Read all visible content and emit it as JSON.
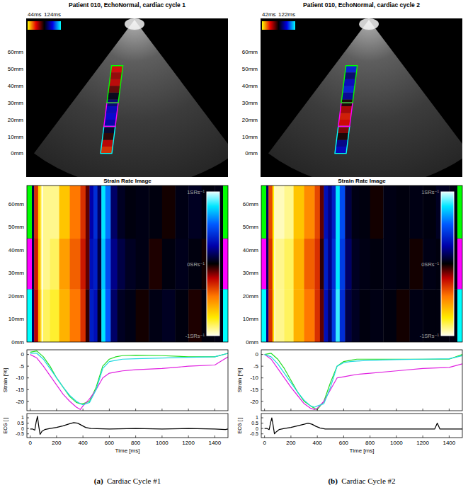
{
  "chart_data": [
    {
      "type": "image",
      "title": "Patient 010, EchoNormal, cardiac cycle 1",
      "label": "(a)",
      "caption": "Cardiac Cycle #1",
      "ylim": [
        -14,
        80
      ],
      "yticks": [
        {
          "value": 0,
          "label": "0mm"
        },
        {
          "value": 10,
          "label": "10mm"
        },
        {
          "value": 20,
          "label": "20mm"
        },
        {
          "value": 30,
          "label": "30mm"
        },
        {
          "value": 40,
          "label": "40mm"
        },
        {
          "value": 50,
          "label": "50mm"
        },
        {
          "value": 60,
          "label": "60mm"
        }
      ],
      "colorbar": {
        "range": [
          44,
          124
        ],
        "ticks": [
          {
            "value": 44,
            "label": "44ms"
          },
          {
            "value": 124,
            "label": "124ms"
          }
        ]
      },
      "segments": [
        {
          "color": "#00ffff",
          "range": [
            0,
            16
          ]
        },
        {
          "color": "#ff00ff",
          "range": [
            16,
            30
          ]
        },
        {
          "color": "#00ff00",
          "range": [
            30,
            52
          ]
        }
      ],
      "cell_range": [
        0,
        52
      ],
      "cells": [
        60,
        66,
        80,
        88,
        100,
        104,
        102,
        95,
        86,
        75,
        66,
        70,
        64
      ]
    },
    {
      "type": "heatmap",
      "title": "Strain Rate Image",
      "xlim": [
        -25,
        1500
      ],
      "ylim": [
        0,
        68
      ],
      "yticks": [
        {
          "value": 0,
          "label": "0mm"
        },
        {
          "value": 10,
          "label": "10mm"
        },
        {
          "value": 20,
          "label": "20mm"
        },
        {
          "value": 30,
          "label": "30mm"
        },
        {
          "value": 40,
          "label": "40mm"
        },
        {
          "value": 50,
          "label": "50mm"
        },
        {
          "value": 60,
          "label": "60mm"
        }
      ],
      "tick_labels": "y",
      "x_edges": [
        -25,
        0,
        30,
        60,
        80,
        150,
        220,
        300,
        380,
        420,
        450,
        480,
        510,
        540,
        570,
        610,
        660,
        720,
        800,
        900,
        1000,
        1100,
        1200,
        1300,
        1400,
        1500
      ],
      "y_edges": [
        0,
        23,
        45,
        68
      ],
      "cells": [
        [
          0.05,
          0.15,
          -0.2,
          -0.6,
          -0.85,
          -0.8,
          -0.6,
          -0.45,
          -0.3,
          -0.05,
          0.35,
          0.3,
          0.05,
          0.8,
          0.55,
          0.15,
          0.05,
          0.03,
          -0.02,
          0.03,
          0.05,
          0.02,
          -0.03,
          0.02,
          0.03
        ],
        [
          0.05,
          0.1,
          -0.25,
          -0.65,
          -0.9,
          -0.85,
          -0.55,
          -0.4,
          -0.25,
          -0.1,
          0.3,
          0.35,
          0.1,
          0.75,
          0.5,
          0.2,
          0.1,
          0.05,
          0.03,
          -0.03,
          0.02,
          0.04,
          0.02,
          -0.02,
          0.02
        ],
        [
          0.05,
          0.1,
          -0.3,
          -0.7,
          -0.9,
          -0.9,
          -0.65,
          -0.45,
          -0.3,
          -0.1,
          0.25,
          0.4,
          0.15,
          0.8,
          0.6,
          0.15,
          0.05,
          0.02,
          0.03,
          0.02,
          -0.02,
          0.03,
          0.05,
          0.02,
          0.03
        ]
      ],
      "colorbar": {
        "range": [
          -1,
          1
        ],
        "ticks": [
          {
            "value": 1,
            "label": "1SRs⁻¹"
          },
          {
            "value": 0,
            "label": "0SRs⁻¹"
          },
          {
            "value": -1,
            "label": "-1SRs⁻¹"
          }
        ]
      },
      "segments": [
        {
          "color": "#00ffff",
          "range": [
            0,
            23
          ]
        },
        {
          "color": "#ff00ff",
          "range": [
            23,
            45
          ]
        },
        {
          "color": "#00ff00",
          "range": [
            45,
            68
          ]
        }
      ],
      "onset": 93
    },
    {
      "type": "line",
      "ylabel": "Strain [%]",
      "xlim": [
        -25,
        1500
      ],
      "ylim": [
        -24,
        2
      ],
      "xticks": [
        0,
        200,
        400,
        600,
        800,
        1000,
        1200,
        1400
      ],
      "yticks": [
        0,
        -5,
        -10,
        -15,
        -20
      ],
      "tick_labels": "y",
      "x": [
        0,
        50,
        100,
        150,
        200,
        250,
        300,
        350,
        380,
        400,
        450,
        500,
        550,
        600,
        650,
        700,
        800,
        1000,
        1200,
        1400,
        1500
      ],
      "series": [
        {
          "color": "#22dd22",
          "values": [
            1,
            1.5,
            -1,
            -5,
            -10,
            -14,
            -18,
            -20.5,
            -21,
            -21,
            -20,
            -14,
            -5,
            -2,
            -1,
            -0.5,
            -0.3,
            -0.5,
            -1,
            -1,
            0.5
          ]
        },
        {
          "color": "#e020e0",
          "values": [
            0,
            -1.5,
            -5,
            -9,
            -13,
            -17,
            -20,
            -22.5,
            -23.5,
            -22,
            -19,
            -15,
            -10,
            -8,
            -7.5,
            -7,
            -6.5,
            -6,
            -5,
            -4.5,
            -1
          ]
        },
        {
          "color": "#20d8e0",
          "values": [
            0.5,
            0.5,
            -2,
            -6,
            -10,
            -14,
            -17.5,
            -20,
            -21,
            -21.5,
            -20.5,
            -15,
            -6,
            -3,
            -2.5,
            -2,
            -1.8,
            -1.5,
            -1.2,
            -1,
            0.5
          ]
        }
      ]
    },
    {
      "type": "line",
      "xlabel": "Time [ms]",
      "ylabel": "ECG [ ]",
      "xlim": [
        -25,
        1500
      ],
      "ylim": [
        -0.85,
        1.4
      ],
      "xticks": [
        0,
        200,
        400,
        600,
        800,
        1000,
        1200,
        1400
      ],
      "yticks": [
        1,
        0.5,
        0,
        -0.5
      ],
      "x": [
        0,
        20,
        35,
        45,
        55,
        65,
        75,
        90,
        110,
        150,
        200,
        250,
        300,
        330,
        360,
        390,
        420,
        460,
        600,
        800,
        1000,
        1200,
        1400,
        1480,
        1500
      ],
      "series": [
        {
          "color": "#000000",
          "values": [
            -0.05,
            -0.05,
            -0.15,
            0.6,
            1.15,
            0.2,
            -0.55,
            -0.25,
            -0.1,
            0,
            0.1,
            0.25,
            0.45,
            0.55,
            0.5,
            0.3,
            0.1,
            0,
            -0.05,
            0,
            -0.05,
            0,
            -0.05,
            -0.1,
            -0.05
          ]
        }
      ]
    },
    {
      "type": "image",
      "title": "Patient 010, EchoNormal, cardiac cycle 2",
      "label": "(b)",
      "caption": "Cardiac Cycle #2",
      "ylim": [
        -14,
        80
      ],
      "yticks": [
        {
          "value": 0,
          "label": "0mm"
        },
        {
          "value": 10,
          "label": "10mm"
        },
        {
          "value": 20,
          "label": "20mm"
        },
        {
          "value": 30,
          "label": "30mm"
        },
        {
          "value": 40,
          "label": "40mm"
        },
        {
          "value": 50,
          "label": "50mm"
        },
        {
          "value": 60,
          "label": "60mm"
        }
      ],
      "colorbar": {
        "range": [
          42,
          122
        ],
        "ticks": [
          {
            "value": 42,
            "label": "42ms"
          },
          {
            "value": 122,
            "label": "122ms"
          }
        ]
      },
      "segments": [
        {
          "color": "#00ffff",
          "range": [
            0,
            16
          ]
        },
        {
          "color": "#ff00ff",
          "range": [
            16,
            30
          ]
        },
        {
          "color": "#00ff00",
          "range": [
            30,
            52
          ]
        }
      ],
      "cell_range": [
        0,
        52
      ],
      "cells": [
        100,
        95,
        80,
        70,
        62,
        60,
        66,
        80,
        96,
        104,
        100,
        92,
        104
      ]
    },
    {
      "type": "heatmap",
      "title": "Strain Rate Image",
      "xlim": [
        -25,
        1500
      ],
      "ylim": [
        0,
        68
      ],
      "yticks": [
        {
          "value": 0,
          "label": "0mm"
        },
        {
          "value": 10,
          "label": "10mm"
        },
        {
          "value": 20,
          "label": "20mm"
        },
        {
          "value": 30,
          "label": "30mm"
        },
        {
          "value": 40,
          "label": "40mm"
        },
        {
          "value": 50,
          "label": "50mm"
        },
        {
          "value": 60,
          "label": "60mm"
        }
      ],
      "tick_labels": "y",
      "x_edges": [
        -25,
        0,
        30,
        60,
        80,
        150,
        220,
        300,
        380,
        420,
        450,
        480,
        510,
        540,
        570,
        610,
        660,
        720,
        800,
        900,
        1000,
        1100,
        1200,
        1300,
        1400,
        1500
      ],
      "y_edges": [
        0,
        23,
        45,
        68
      ],
      "cells": [
        [
          0.1,
          0.2,
          -0.3,
          -0.7,
          -0.9,
          -0.85,
          -0.6,
          -0.45,
          -0.3,
          -0.1,
          0.3,
          0.15,
          0.45,
          0.85,
          0.4,
          0.1,
          0.05,
          0.02,
          0.03,
          0.02,
          -0.02,
          0.03,
          0.02,
          0.02,
          0.03
        ],
        [
          0.1,
          0.15,
          -0.3,
          -0.75,
          -0.9,
          -0.85,
          -0.6,
          -0.4,
          -0.3,
          -0.05,
          0.35,
          0.2,
          0.4,
          0.8,
          0.45,
          0.15,
          0.05,
          0.03,
          0.02,
          0.03,
          0.02,
          -0.02,
          0.03,
          0.02,
          0.02
        ],
        [
          0.1,
          0.15,
          -0.35,
          -0.75,
          -0.95,
          -0.9,
          -0.65,
          -0.5,
          -0.35,
          -0.1,
          0.3,
          0.2,
          0.35,
          0.8,
          0.5,
          0.1,
          0.03,
          0.02,
          -0.02,
          0.03,
          0.02,
          0.03,
          0.02,
          0.05,
          0.03
        ]
      ],
      "colorbar": {
        "range": [
          -1,
          1
        ],
        "ticks": [
          {
            "value": 1,
            "label": "1SRs⁻¹"
          },
          {
            "value": 0,
            "label": "0SRs⁻¹"
          },
          {
            "value": -1,
            "label": "-1SRs⁻¹"
          }
        ]
      },
      "segments": [
        {
          "color": "#00ffff",
          "range": [
            0,
            23
          ]
        },
        {
          "color": "#ff00ff",
          "range": [
            23,
            45
          ]
        },
        {
          "color": "#00ff00",
          "range": [
            45,
            68
          ]
        }
      ],
      "onset": 77
    },
    {
      "type": "line",
      "ylabel": "Strain [%]",
      "xlim": [
        -25,
        1500
      ],
      "ylim": [
        -24,
        2
      ],
      "xticks": [
        0,
        200,
        400,
        600,
        800,
        1000,
        1200,
        1400
      ],
      "yticks": [
        0,
        -5,
        -10,
        -15,
        -20
      ],
      "tick_labels": "y",
      "x": [
        0,
        50,
        100,
        150,
        200,
        250,
        300,
        350,
        380,
        400,
        450,
        500,
        550,
        600,
        650,
        700,
        800,
        1000,
        1200,
        1400,
        1500
      ],
      "series": [
        {
          "color": "#22dd22",
          "values": [
            0,
            0.5,
            -2,
            -6,
            -11,
            -16,
            -20,
            -22,
            -23,
            -23.5,
            -20,
            -12,
            -5,
            -3,
            -2.5,
            -2,
            -2,
            -2,
            -2,
            -2,
            0
          ]
        },
        {
          "color": "#e020e0",
          "values": [
            0,
            -2,
            -6,
            -10,
            -14,
            -17.5,
            -21,
            -23,
            -23.5,
            -23,
            -20,
            -15,
            -10,
            -9.5,
            -9,
            -8.5,
            -8,
            -7,
            -6,
            -5.5,
            -4
          ]
        },
        {
          "color": "#20d8e0",
          "values": [
            0,
            -1,
            -4,
            -8,
            -12,
            -16,
            -19.5,
            -22,
            -22.5,
            -22,
            -21,
            -14,
            -5,
            -3.5,
            -3,
            -2.8,
            -2.5,
            -2.2,
            -2,
            -1.8,
            -0.5
          ]
        }
      ]
    },
    {
      "type": "line",
      "xlabel": "Time [ms]",
      "ylabel": "ECG [ ]",
      "xlim": [
        -25,
        1500
      ],
      "ylim": [
        -0.85,
        1.4
      ],
      "xticks": [
        0,
        200,
        400,
        600,
        800,
        1000,
        1200,
        1400
      ],
      "yticks": [
        1,
        0.5,
        0,
        -0.5
      ],
      "x": [
        0,
        20,
        35,
        45,
        55,
        65,
        75,
        90,
        110,
        150,
        200,
        250,
        300,
        330,
        360,
        390,
        420,
        460,
        600,
        800,
        1000,
        1200,
        1290,
        1310,
        1330,
        1500
      ],
      "series": [
        {
          "color": "#000000",
          "values": [
            0,
            0,
            -0.1,
            0.5,
            1.0,
            0.3,
            -0.5,
            -0.3,
            -0.1,
            0,
            0.1,
            0.25,
            0.4,
            0.5,
            0.4,
            0.2,
            0.05,
            -0.05,
            -0.05,
            -0.05,
            -0.05,
            -0.05,
            -0.05,
            0.5,
            -0.05,
            -0.05
          ]
        }
      ]
    }
  ]
}
